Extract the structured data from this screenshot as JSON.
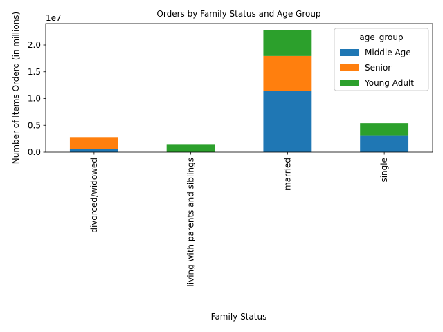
{
  "chart_data": {
    "type": "bar",
    "stacked": true,
    "title": "Orders by Family Status and Age Group",
    "xlabel": "Family Status",
    "ylabel": "Number of Items Orderd (in millions)",
    "offset_label": "1e7",
    "categories": [
      "divorced/widowed",
      "living with parents and siblings",
      "married",
      "single"
    ],
    "series": [
      {
        "name": "Middle Age",
        "color": "#1f77b4",
        "values": [
          600000,
          0,
          11450000,
          3150000
        ]
      },
      {
        "name": "Senior",
        "color": "#ff7f0e",
        "values": [
          2200000,
          0,
          6500000,
          0
        ]
      },
      {
        "name": "Young Adult",
        "color": "#2ca02c",
        "values": [
          0,
          1500000,
          4850000,
          2250000
        ]
      }
    ],
    "ylim": [
      0,
      24000000
    ],
    "yticks": [
      0,
      5000000,
      10000000,
      15000000,
      20000000
    ],
    "ytick_labels": [
      "0.0",
      "0.5",
      "1.0",
      "1.5",
      "2.0"
    ],
    "legend": {
      "title": "age_group",
      "placement": "top-right"
    },
    "grid": false
  }
}
